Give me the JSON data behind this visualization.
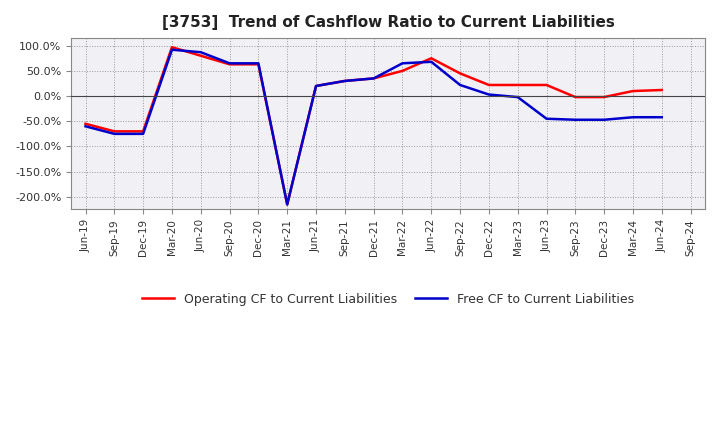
{
  "title": "[3753]  Trend of Cashflow Ratio to Current Liabilities",
  "x_labels": [
    "Jun-19",
    "Sep-19",
    "Dec-19",
    "Mar-20",
    "Jun-20",
    "Sep-20",
    "Dec-20",
    "Mar-21",
    "Jun-21",
    "Sep-21",
    "Dec-21",
    "Mar-22",
    "Jun-22",
    "Sep-22",
    "Dec-22",
    "Mar-23",
    "Jun-23",
    "Sep-23",
    "Dec-23",
    "Mar-24",
    "Jun-24",
    "Sep-24"
  ],
  "operating_cf": [
    -55,
    -70,
    -70,
    97,
    80,
    63,
    63,
    -215,
    20,
    30,
    35,
    50,
    75,
    45,
    22,
    22,
    22,
    -2,
    -2,
    10,
    12,
    null
  ],
  "free_cf": [
    -60,
    -75,
    -75,
    92,
    87,
    65,
    65,
    -215,
    20,
    30,
    35,
    65,
    68,
    22,
    3,
    -2,
    -45,
    -47,
    -47,
    -42,
    -42,
    null
  ],
  "operating_color": "#ff0000",
  "free_color": "#0000cc",
  "ylim": [
    -225,
    115
  ],
  "yticks": [
    100,
    50,
    0,
    -50,
    -100,
    -150,
    -200
  ],
  "plot_bg_color": "#f0f0f5",
  "background_color": "#ffffff",
  "grid_color": "#999999",
  "legend_labels": [
    "Operating CF to Current Liabilities",
    "Free CF to Current Liabilities"
  ]
}
